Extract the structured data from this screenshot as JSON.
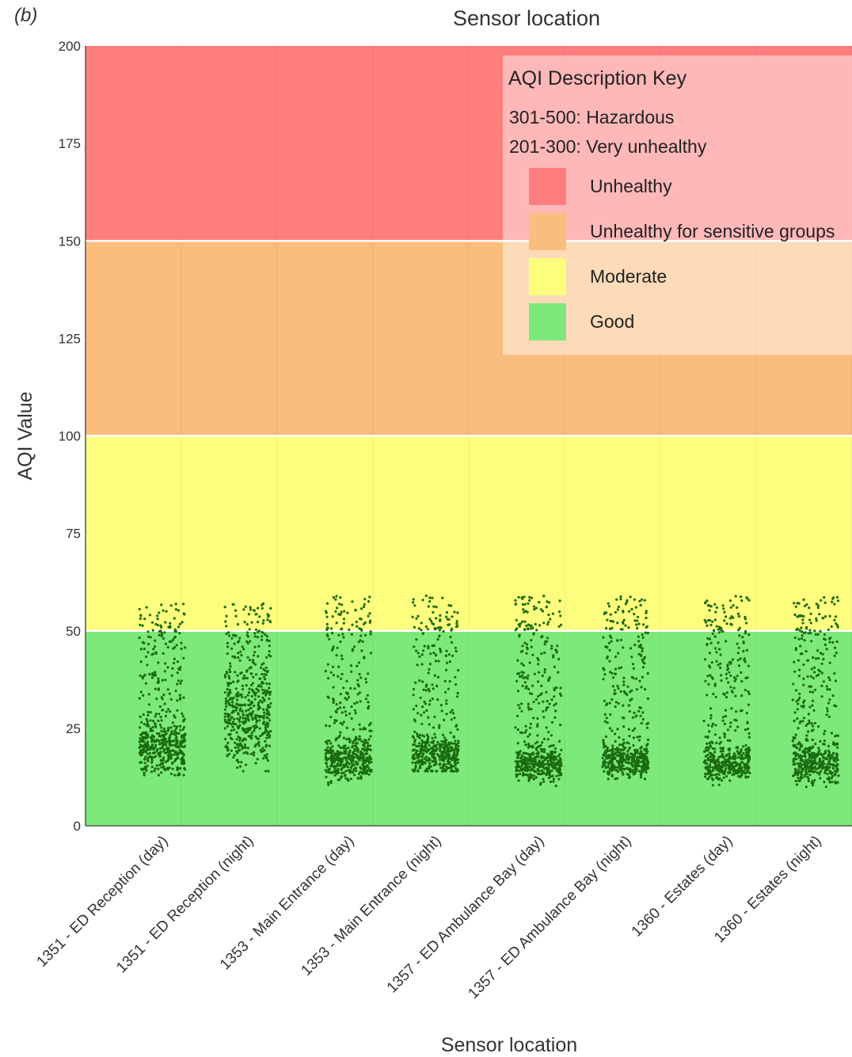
{
  "panel_label": "(b)",
  "top_title": "Sensor location",
  "chart_data": {
    "type": "scatter",
    "title": "Sensor location",
    "xlabel": "Sensor location",
    "ylabel": "AQI Value",
    "ylim": [
      0,
      200
    ],
    "yticks": [
      0,
      25,
      50,
      75,
      100,
      125,
      150,
      175,
      200
    ],
    "categories": [
      "1351 - ED Reception (day)",
      "1351 - ED Reception (night)",
      "1353 - Main Entrance (day)",
      "1353 - Main Entrance (night)",
      "1357 - ED Ambulance Bay (day)",
      "1357 - ED Ambulance Bay (night)",
      "1360 - Estates (day)",
      "1360 - Estates (night)"
    ],
    "category_stats": [
      {
        "min": 13,
        "max": 57,
        "dense_low": 14,
        "dense_high": 24,
        "median": 20
      },
      {
        "min": 14,
        "max": 57,
        "dense_low": 18,
        "dense_high": 38,
        "median": 28
      },
      {
        "min": 7,
        "max": 59,
        "dense_low": 13,
        "dense_high": 21,
        "median": 17
      },
      {
        "min": 14,
        "max": 59,
        "dense_low": 14,
        "dense_high": 22,
        "median": 18
      },
      {
        "min": 9,
        "max": 59,
        "dense_low": 13,
        "dense_high": 20,
        "median": 16
      },
      {
        "min": 12,
        "max": 59,
        "dense_low": 14,
        "dense_high": 21,
        "median": 17
      },
      {
        "min": 10,
        "max": 59,
        "dense_low": 13,
        "dense_high": 20,
        "median": 16
      },
      {
        "min": 10,
        "max": 59,
        "dense_low": 13,
        "dense_high": 21,
        "median": 16
      }
    ],
    "point_color": "#1a6b0f",
    "bands": [
      {
        "name": "Good",
        "from": 0,
        "to": 50,
        "color": "#7de97a"
      },
      {
        "name": "Moderate",
        "from": 50,
        "to": 100,
        "color": "#fdfd7e"
      },
      {
        "name": "Unhealthy for sensitive groups",
        "from": 100,
        "to": 150,
        "color": "#fbbd7e"
      },
      {
        "name": "Unhealthy",
        "from": 150,
        "to": 200,
        "color": "#fe7e7e"
      }
    ],
    "legend": {
      "placement": "top-right",
      "title": "AQI Description Key",
      "text_items": [
        "301-500: Hazardous",
        "201-300: Very unhealthy"
      ],
      "swatch_items": [
        {
          "label": "Unhealthy",
          "color": "#fe7e7e"
        },
        {
          "label": "Unhealthy for sensitive groups",
          "color": "#fbbd7e"
        },
        {
          "label": "Moderate",
          "color": "#fdfd7e"
        },
        {
          "label": "Good",
          "color": "#7de97a"
        }
      ]
    },
    "grid": true
  }
}
